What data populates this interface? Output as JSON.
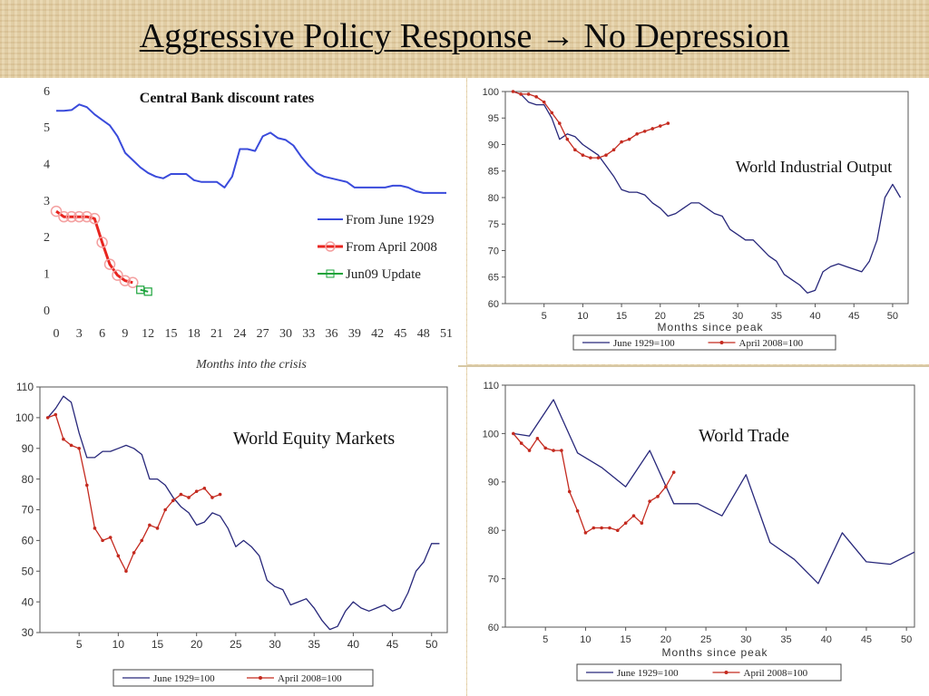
{
  "slide": {
    "title": "Aggressive Policy Response → No Depression"
  },
  "chart_data": [
    {
      "id": "rates",
      "type": "line",
      "title": "Central Bank discount rates",
      "xlabel": "Months into the crisis",
      "ylabel": "",
      "xlim": [
        0,
        51
      ],
      "ylim": [
        0,
        6
      ],
      "xticks": [
        0,
        3,
        6,
        9,
        12,
        15,
        18,
        21,
        24,
        27,
        30,
        33,
        36,
        39,
        42,
        45,
        48,
        51
      ],
      "yticks": [
        0,
        1,
        2,
        3,
        4,
        5,
        6
      ],
      "grid": false,
      "legend": "right",
      "series": [
        {
          "name": "From June 1929",
          "color": "#3a4bdb",
          "marker": "none",
          "x": [
            0,
            1,
            2,
            3,
            4,
            5,
            6,
            7,
            8,
            9,
            10,
            11,
            12,
            13,
            14,
            15,
            16,
            17,
            18,
            19,
            20,
            21,
            22,
            23,
            24,
            25,
            26,
            27,
            28,
            29,
            30,
            31,
            32,
            33,
            34,
            35,
            36,
            37,
            38,
            39,
            40,
            41,
            42,
            43,
            44,
            45,
            46,
            47,
            48,
            49,
            50,
            51
          ],
          "y": [
            5.45,
            5.45,
            5.47,
            5.62,
            5.55,
            5.35,
            5.2,
            5.05,
            4.75,
            4.3,
            4.1,
            3.9,
            3.75,
            3.65,
            3.6,
            3.72,
            3.72,
            3.72,
            3.55,
            3.5,
            3.5,
            3.5,
            3.35,
            3.65,
            4.4,
            4.4,
            4.35,
            4.75,
            4.85,
            4.7,
            4.65,
            4.5,
            4.2,
            3.95,
            3.75,
            3.65,
            3.6,
            3.55,
            3.5,
            3.35,
            3.35,
            3.35,
            3.35,
            3.35,
            3.4,
            3.4,
            3.35,
            3.25,
            3.2,
            3.2,
            3.2,
            3.2
          ]
        },
        {
          "name": "From April 2008",
          "color": "#e8251f",
          "marker": "circle",
          "x": [
            0,
            1,
            2,
            3,
            4,
            5,
            6,
            7,
            8,
            9,
            10
          ],
          "y": [
            2.7,
            2.55,
            2.55,
            2.55,
            2.55,
            2.5,
            1.85,
            1.25,
            0.95,
            0.8,
            0.75
          ]
        },
        {
          "name": "Jun09 Update",
          "color": "#1aa33a",
          "marker": "square",
          "x": [
            11,
            12
          ],
          "y": [
            0.55,
            0.5
          ]
        }
      ]
    },
    {
      "id": "industrial",
      "type": "line",
      "title": "World Industrial Output",
      "xlabel": "Months since peak",
      "ylabel": "",
      "xlim": [
        0,
        52
      ],
      "ylim": [
        60,
        100
      ],
      "xticks": [
        5,
        10,
        15,
        20,
        25,
        30,
        35,
        40,
        45,
        50
      ],
      "yticks": [
        60,
        65,
        70,
        75,
        80,
        85,
        90,
        95,
        100
      ],
      "grid": false,
      "legend": "bottom",
      "series": [
        {
          "name": "June 1929=100",
          "color": "#27277a",
          "x": [
            1,
            2,
            3,
            4,
            5,
            6,
            7,
            8,
            9,
            10,
            11,
            12,
            13,
            14,
            15,
            16,
            17,
            18,
            19,
            20,
            21,
            22,
            23,
            24,
            25,
            26,
            27,
            28,
            29,
            30,
            31,
            32,
            33,
            34,
            35,
            36,
            37,
            38,
            39,
            40,
            41,
            42,
            43,
            44,
            45,
            46,
            47,
            48,
            49,
            50,
            51
          ],
          "y": [
            100,
            99.5,
            98,
            97.5,
            97.5,
            95,
            91,
            92,
            91.5,
            90,
            89,
            88,
            86,
            84,
            81.5,
            81,
            81,
            80.5,
            79,
            78,
            76.5,
            77,
            78,
            79,
            79,
            78,
            77,
            76.5,
            74,
            73,
            72,
            72,
            70.5,
            69,
            68,
            65.5,
            64.5,
            63.5,
            62,
            62.5,
            66,
            67,
            67.5,
            67,
            66.5,
            66,
            68,
            72,
            80,
            82.5,
            80
          ]
        },
        {
          "name": "April 2008=100",
          "color": "#c42a1f",
          "x": [
            1,
            2,
            3,
            4,
            5,
            6,
            7,
            8,
            9,
            10,
            11,
            12,
            13,
            14,
            15,
            16,
            17,
            18,
            19,
            20,
            21
          ],
          "y": [
            100,
            99.5,
            99.5,
            99,
            98,
            96,
            94,
            91,
            89,
            88,
            87.5,
            87.5,
            88,
            89,
            90.5,
            91,
            92,
            92.5,
            93,
            93.5,
            94
          ]
        }
      ]
    },
    {
      "id": "equity",
      "type": "line",
      "title": "World Equity Markets",
      "xlabel": "",
      "ylabel": "",
      "xlim": [
        0,
        52
      ],
      "ylim": [
        30,
        110
      ],
      "xticks": [
        5,
        10,
        15,
        20,
        25,
        30,
        35,
        40,
        45,
        50
      ],
      "yticks": [
        30,
        40,
        50,
        60,
        70,
        80,
        90,
        100,
        110
      ],
      "grid": false,
      "legend": "bottom",
      "series": [
        {
          "name": "June 1929=100",
          "color": "#27277a",
          "x": [
            1,
            2,
            3,
            4,
            5,
            6,
            7,
            8,
            9,
            10,
            11,
            12,
            13,
            14,
            15,
            16,
            17,
            18,
            19,
            20,
            21,
            22,
            23,
            24,
            25,
            26,
            27,
            28,
            29,
            30,
            31,
            32,
            33,
            34,
            35,
            36,
            37,
            38,
            39,
            40,
            41,
            42,
            43,
            44,
            45,
            46,
            47,
            48,
            49,
            50,
            51
          ],
          "y": [
            100,
            103,
            107,
            105,
            95,
            87,
            87,
            89,
            89,
            90,
            91,
            90,
            88,
            80,
            80,
            78,
            74,
            71,
            69,
            65,
            66,
            69,
            68,
            64,
            58,
            60,
            58,
            55,
            47,
            45,
            44,
            39,
            40,
            41,
            38,
            34,
            31,
            32,
            37,
            40,
            38,
            37,
            38,
            39,
            37,
            38,
            43,
            50,
            53,
            59,
            59
          ]
        },
        {
          "name": "April 2008=100",
          "color": "#c42a1f",
          "x": [
            1,
            2,
            3,
            4,
            5,
            6,
            7,
            8,
            9,
            10,
            11,
            12,
            13,
            14,
            15,
            16,
            17,
            18,
            19,
            20,
            21,
            22,
            23
          ],
          "y": [
            100,
            101,
            93,
            91,
            90,
            78,
            64,
            60,
            61,
            55,
            50,
            56,
            60,
            65,
            64,
            70,
            73,
            75,
            74,
            76,
            77,
            74,
            75
          ]
        }
      ]
    },
    {
      "id": "trade",
      "type": "line",
      "title": "World Trade",
      "xlabel": "Months since peak",
      "ylabel": "",
      "xlim": [
        0,
        51
      ],
      "ylim": [
        60,
        110
      ],
      "xticks": [
        5,
        10,
        15,
        20,
        25,
        30,
        35,
        40,
        45,
        50
      ],
      "yticks": [
        60,
        70,
        80,
        90,
        100,
        110
      ],
      "grid": false,
      "legend": "bottom",
      "series": [
        {
          "name": "June 1929=100",
          "color": "#27277a",
          "x": [
            1,
            3,
            6,
            9,
            12,
            15,
            18,
            21,
            24,
            27,
            30,
            33,
            36,
            39,
            42,
            45,
            48,
            51
          ],
          "y": [
            100,
            99.5,
            107,
            96,
            93,
            89,
            96.5,
            85.5,
            85.5,
            83,
            91.5,
            77.5,
            74,
            69,
            79.5,
            73.5,
            73,
            75.5
          ]
        },
        {
          "name": "April 2008=100",
          "color": "#c42a1f",
          "x": [
            1,
            2,
            3,
            4,
            5,
            6,
            7,
            8,
            9,
            10,
            11,
            12,
            13,
            14,
            15,
            16,
            17,
            18,
            19,
            20,
            21
          ],
          "y": [
            100,
            98,
            96.5,
            99,
            97,
            96.5,
            96.5,
            88,
            84,
            79.5,
            80.5,
            80.5,
            80.5,
            80,
            81.5,
            83,
            81.5,
            86,
            87,
            89,
            92
          ]
        }
      ]
    }
  ]
}
